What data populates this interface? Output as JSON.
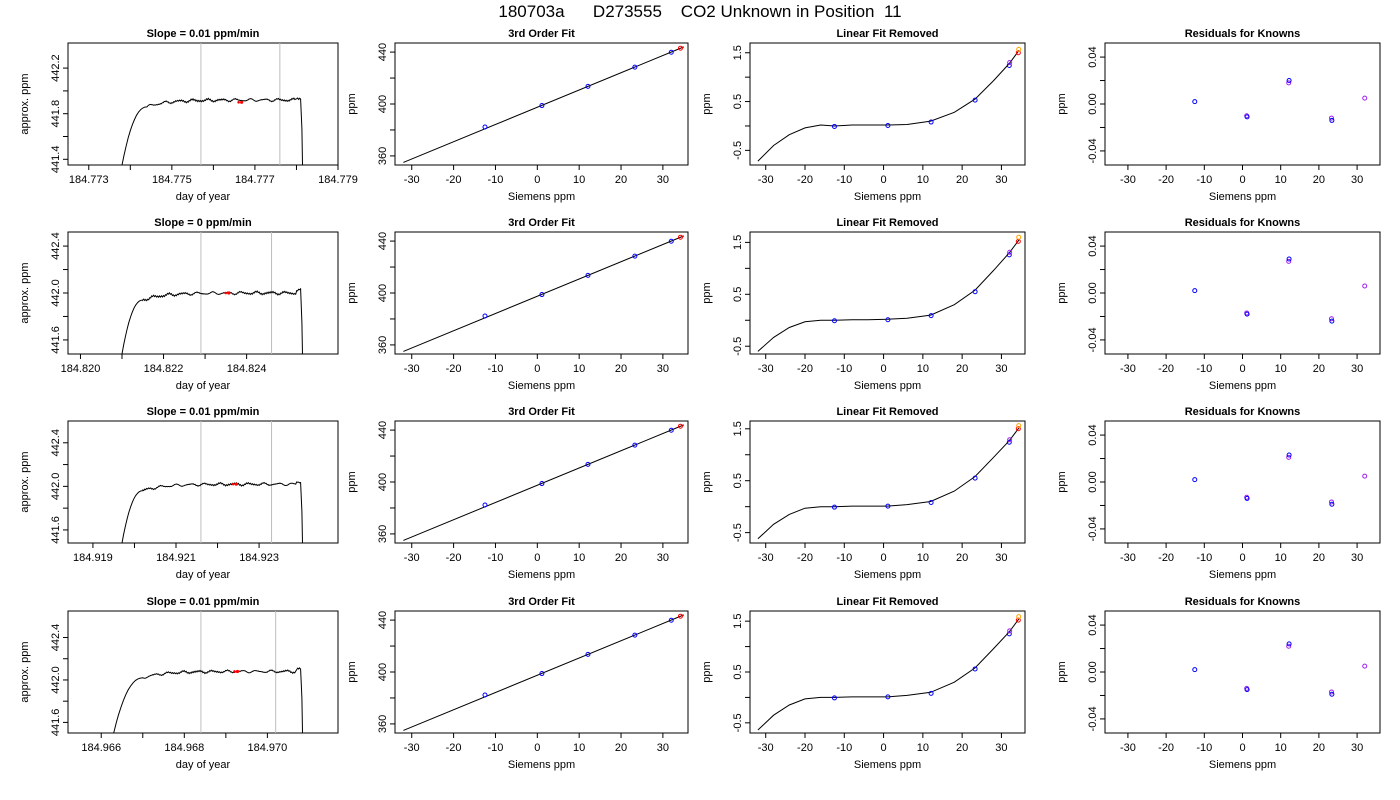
{
  "title": "180703a      D273555    CO2 Unknown in Position  11",
  "colors": {
    "trace": "#000000",
    "blue_points": "#0000ff",
    "purple_points": "#a020f0",
    "red_points": "#ff0000",
    "orange_points": "#ffa500",
    "divider_lines": "#bebebe"
  },
  "chart_data": [
    {
      "row": 1,
      "panels": [
        {
          "type": "line",
          "title": "Slope =  0.01  ppm/min",
          "xlabel": "day of year",
          "ylabel": "approx. ppm",
          "xlim": [
            184.7725,
            184.779
          ],
          "ylim": [
            441.35,
            442.42
          ],
          "xticks": [
            "184.773",
            "184.775",
            "184.777",
            "184.779"
          ],
          "yticks": [
            "441.4",
            "441.8",
            "442.2"
          ],
          "vlines": [
            184.7757,
            184.7776
          ],
          "trace_shape": {
            "rise_start": 184.7738,
            "rise_end": 184.7742,
            "plateau_start": 184.7744,
            "plateau_value": 441.92,
            "end": 184.7781
          },
          "marker": {
            "x": 184.77668,
            "y": 441.9
          }
        },
        {
          "type": "scatter",
          "title": "3rd Order Fit",
          "xlabel": "Siemens ppm",
          "ylabel": "ppm",
          "xlim": [
            -34,
            36
          ],
          "ylim": [
            353,
            447
          ],
          "xticks": [
            "-30",
            "-20",
            "-10",
            "0",
            "10",
            "20",
            "30"
          ],
          "yticks": [
            "360",
            "400",
            "440"
          ],
          "line": {
            "x": [
              -32,
              35
            ],
            "y": [
              355,
              444
            ]
          },
          "points_x": [
            -12.5,
            1.1,
            12.1,
            23.3,
            32.0,
            34.2
          ],
          "points_y": [
            382.3,
            398.8,
            413.6,
            428.4,
            439.9,
            443.0
          ]
        },
        {
          "type": "scatter",
          "title": "Linear Fit Removed",
          "xlabel": "Siemens ppm",
          "ylabel": "ppm",
          "xlim": [
            -34,
            36
          ],
          "ylim": [
            -0.8,
            1.7
          ],
          "xticks": [
            "-30",
            "-20",
            "-10",
            "0",
            "10",
            "20",
            "30"
          ],
          "yticks": [
            "-0.5",
            "0.5",
            "1.5"
          ],
          "curve_points": [
            [
              -32,
              -0.72
            ],
            [
              -28,
              -0.4
            ],
            [
              -24,
              -0.18
            ],
            [
              -20,
              -0.04
            ],
            [
              -16,
              0.02
            ],
            [
              -12.5,
              0.0
            ],
            [
              -8,
              0.02
            ],
            [
              -4,
              0.02
            ],
            [
              1,
              0.02
            ],
            [
              6,
              0.03
            ],
            [
              12,
              0.1
            ],
            [
              18,
              0.28
            ],
            [
              23.3,
              0.55
            ],
            [
              28,
              0.93
            ],
            [
              32,
              1.28
            ],
            [
              34.5,
              1.55
            ]
          ],
          "points_x": [
            -12.5,
            1.1,
            12.1,
            23.3,
            32.0,
            32.1,
            34.3,
            34.4
          ],
          "points_y": [
            -0.01,
            0.01,
            0.08,
            0.53,
            1.24,
            1.3,
            1.5,
            1.57
          ]
        },
        {
          "type": "scatter",
          "title": "Residuals for Knowns",
          "xlabel": "Siemens ppm",
          "ylabel": "ppm",
          "xlim": [
            -36,
            36
          ],
          "ylim": [
            -0.052,
            0.052
          ],
          "xticks": [
            "-30",
            "-20",
            "-10",
            "0",
            "10",
            "20",
            "30"
          ],
          "yticks": [
            "-0.04",
            "0.00",
            "0.04"
          ],
          "points_x": [
            -12.5,
            1.1,
            1.2,
            12.1,
            12.2,
            23.3,
            23.4,
            32.0
          ],
          "points_y": [
            0.002,
            -0.01,
            -0.011,
            0.018,
            0.02,
            -0.012,
            -0.014,
            0.005
          ]
        }
      ]
    },
    {
      "row": 2,
      "panels": [
        {
          "type": "line",
          "title": "Slope =  0  ppm/min",
          "xlabel": "day of year",
          "ylabel": "approx. ppm",
          "xlim": [
            184.8197,
            184.8262
          ],
          "ylim": [
            441.48,
            442.52
          ],
          "xticks": [
            "184.820",
            "184.822",
            "184.824"
          ],
          "yticks": [
            "441.6",
            "442.0",
            "442.4"
          ],
          "vlines": [
            184.8229,
            184.8246
          ],
          "trace_shape": {
            "rise_start": 184.821,
            "rise_end": 184.8213,
            "plateau_start": 184.8215,
            "plateau_value": 442.0,
            "end": 184.8253
          },
          "marker": {
            "x": 184.82357,
            "y": 442.0
          }
        },
        {
          "type": "scatter",
          "title": "3rd Order Fit",
          "xlabel": "Siemens ppm",
          "ylabel": "ppm",
          "xlim": [
            -34,
            36
          ],
          "ylim": [
            353,
            447
          ],
          "xticks": [
            "-30",
            "-20",
            "-10",
            "0",
            "10",
            "20",
            "30"
          ],
          "yticks": [
            "360",
            "400",
            "440"
          ],
          "line": {
            "x": [
              -32,
              35
            ],
            "y": [
              355,
              444
            ]
          },
          "points_x": [
            -12.5,
            1.1,
            12.1,
            23.3,
            32.0,
            34.2
          ],
          "points_y": [
            382.3,
            398.8,
            413.6,
            428.4,
            439.9,
            443.0
          ]
        },
        {
          "type": "scatter",
          "title": "Linear Fit Removed",
          "xlabel": "Siemens ppm",
          "ylabel": "ppm",
          "xlim": [
            -34,
            36
          ],
          "ylim": [
            -0.65,
            1.7
          ],
          "xticks": [
            "-30",
            "-20",
            "-10",
            "0",
            "10",
            "20",
            "30"
          ],
          "yticks": [
            "-0.5",
            "0.5",
            "1.5"
          ],
          "curve_points": [
            [
              -32,
              -0.6
            ],
            [
              -28,
              -0.33
            ],
            [
              -24,
              -0.14
            ],
            [
              -20,
              -0.03
            ],
            [
              -16,
              0.0
            ],
            [
              -12.5,
              0.0
            ],
            [
              -8,
              0.01
            ],
            [
              -4,
              0.01
            ],
            [
              1,
              0.02
            ],
            [
              6,
              0.04
            ],
            [
              12,
              0.1
            ],
            [
              18,
              0.3
            ],
            [
              23.3,
              0.58
            ],
            [
              28,
              0.96
            ],
            [
              32,
              1.3
            ],
            [
              34.5,
              1.55
            ]
          ],
          "points_x": [
            -12.5,
            1.1,
            12.1,
            23.3,
            32.0,
            32.1,
            34.3,
            34.4
          ],
          "points_y": [
            -0.01,
            0.01,
            0.09,
            0.55,
            1.26,
            1.31,
            1.52,
            1.6
          ]
        },
        {
          "type": "scatter",
          "title": "Residuals for Knowns",
          "xlabel": "Siemens ppm",
          "ylabel": "ppm",
          "xlim": [
            -36,
            36
          ],
          "ylim": [
            -0.052,
            0.052
          ],
          "xticks": [
            "-30",
            "-20",
            "-10",
            "0",
            "10",
            "20",
            "30"
          ],
          "yticks": [
            "-0.04",
            "0.00",
            "0.04"
          ],
          "points_x": [
            -12.5,
            1.1,
            1.2,
            12.1,
            12.2,
            23.3,
            23.4,
            32.0
          ],
          "points_y": [
            0.002,
            -0.017,
            -0.018,
            0.027,
            0.029,
            -0.022,
            -0.024,
            0.006
          ]
        }
      ]
    },
    {
      "row": 3,
      "panels": [
        {
          "type": "line",
          "title": "Slope =  0.01  ppm/min",
          "xlabel": "day of year",
          "ylabel": "approx. ppm",
          "xlim": [
            184.9184,
            184.9249
          ],
          "ylim": [
            441.48,
            442.6
          ],
          "xticks": [
            "184.919",
            "184.921",
            "184.923"
          ],
          "yticks": [
            "441.6",
            "442.0",
            "442.4"
          ],
          "vlines": [
            184.9216,
            184.9233
          ],
          "trace_shape": {
            "rise_start": 184.9197,
            "rise_end": 184.92,
            "plateau_start": 184.9202,
            "plateau_value": 442.02,
            "end": 184.924
          },
          "marker": {
            "x": 184.92245,
            "y": 442.02
          }
        },
        {
          "type": "scatter",
          "title": "3rd Order Fit",
          "xlabel": "Siemens ppm",
          "ylabel": "ppm",
          "xlim": [
            -34,
            36
          ],
          "ylim": [
            353,
            447
          ],
          "xticks": [
            "-30",
            "-20",
            "-10",
            "0",
            "10",
            "20",
            "30"
          ],
          "yticks": [
            "360",
            "400",
            "440"
          ],
          "line": {
            "x": [
              -32,
              35
            ],
            "y": [
              355,
              444
            ]
          },
          "points_x": [
            -12.5,
            1.1,
            12.1,
            23.3,
            32.0,
            34.2
          ],
          "points_y": [
            382.3,
            398.8,
            413.6,
            428.4,
            439.9,
            443.0
          ]
        },
        {
          "type": "scatter",
          "title": "Linear Fit Removed",
          "xlabel": "Siemens ppm",
          "ylabel": "ppm",
          "xlim": [
            -34,
            36
          ],
          "ylim": [
            -0.7,
            1.65
          ],
          "xticks": [
            "-30",
            "-20",
            "-10",
            "0",
            "10",
            "20",
            "30"
          ],
          "yticks": [
            "-0.5",
            "0.5",
            "1.5"
          ],
          "curve_points": [
            [
              -32,
              -0.62
            ],
            [
              -28,
              -0.34
            ],
            [
              -24,
              -0.15
            ],
            [
              -20,
              -0.03
            ],
            [
              -16,
              0.0
            ],
            [
              -12.5,
              0.0
            ],
            [
              -8,
              0.01
            ],
            [
              -4,
              0.01
            ],
            [
              1,
              0.01
            ],
            [
              6,
              0.04
            ],
            [
              12,
              0.1
            ],
            [
              18,
              0.3
            ],
            [
              23.3,
              0.58
            ],
            [
              28,
              0.95
            ],
            [
              32,
              1.27
            ],
            [
              34.5,
              1.52
            ]
          ],
          "points_x": [
            -12.5,
            1.1,
            12.1,
            23.3,
            32.0,
            32.1,
            34.3,
            34.4
          ],
          "points_y": [
            -0.01,
            0.01,
            0.08,
            0.55,
            1.24,
            1.29,
            1.5,
            1.56
          ]
        },
        {
          "type": "scatter",
          "title": "Residuals for Knowns",
          "xlabel": "Siemens ppm",
          "ylabel": "ppm",
          "xlim": [
            -36,
            36
          ],
          "ylim": [
            -0.052,
            0.052
          ],
          "xticks": [
            "-30",
            "-20",
            "-10",
            "0",
            "10",
            "20",
            "30"
          ],
          "yticks": [
            "-0.04",
            "0.00",
            "0.04"
          ],
          "points_x": [
            -12.5,
            1.1,
            1.2,
            12.1,
            12.2,
            23.3,
            23.4,
            32.0
          ],
          "points_y": [
            0.002,
            -0.013,
            -0.014,
            0.021,
            0.023,
            -0.017,
            -0.019,
            0.005
          ]
        }
      ]
    },
    {
      "row": 4,
      "panels": [
        {
          "type": "line",
          "title": "Slope =  0.01  ppm/min",
          "xlabel": "day of year",
          "ylabel": "approx. ppm",
          "xlim": [
            184.9652,
            184.9717
          ],
          "ylim": [
            441.5,
            442.65
          ],
          "xticks": [
            "184.966",
            "184.968",
            "184.970"
          ],
          "yticks": [
            "441.6",
            "442.0",
            "442.4"
          ],
          "vlines": [
            184.9684,
            184.9702
          ],
          "trace_shape": {
            "rise_start": 184.9663,
            "rise_end": 184.9667,
            "plateau_start": 184.967,
            "plateau_value": 442.08,
            "end": 184.9708
          },
          "marker": {
            "x": 184.96928,
            "y": 442.08
          }
        },
        {
          "type": "scatter",
          "title": "3rd Order Fit",
          "xlabel": "Siemens ppm",
          "ylabel": "ppm",
          "xlim": [
            -34,
            36
          ],
          "ylim": [
            353,
            447
          ],
          "xticks": [
            "-30",
            "-20",
            "-10",
            "0",
            "10",
            "20",
            "30"
          ],
          "yticks": [
            "360",
            "400",
            "440"
          ],
          "line": {
            "x": [
              -32,
              35
            ],
            "y": [
              355,
              444
            ]
          },
          "points_x": [
            -12.5,
            1.1,
            12.1,
            23.3,
            32.0,
            34.2
          ],
          "points_y": [
            382.3,
            398.8,
            413.6,
            428.4,
            439.9,
            443.0
          ]
        },
        {
          "type": "scatter",
          "title": "Linear Fit Removed",
          "xlabel": "Siemens ppm",
          "ylabel": "ppm",
          "xlim": [
            -34,
            36
          ],
          "ylim": [
            -0.7,
            1.7
          ],
          "xticks": [
            "-30",
            "-20",
            "-10",
            "0",
            "10",
            "20",
            "30"
          ],
          "yticks": [
            "-0.5",
            "0.5",
            "1.5"
          ],
          "curve_points": [
            [
              -32,
              -0.64
            ],
            [
              -28,
              -0.35
            ],
            [
              -24,
              -0.15
            ],
            [
              -20,
              -0.03
            ],
            [
              -16,
              0.0
            ],
            [
              -12.5,
              0.0
            ],
            [
              -8,
              0.01
            ],
            [
              -4,
              0.01
            ],
            [
              1,
              0.01
            ],
            [
              6,
              0.04
            ],
            [
              12,
              0.1
            ],
            [
              18,
              0.3
            ],
            [
              23.3,
              0.58
            ],
            [
              28,
              0.96
            ],
            [
              32,
              1.29
            ],
            [
              34.5,
              1.55
            ]
          ],
          "points_x": [
            -12.5,
            1.1,
            12.1,
            23.3,
            32.0,
            32.1,
            34.3,
            34.4
          ],
          "points_y": [
            -0.01,
            0.01,
            0.08,
            0.56,
            1.25,
            1.31,
            1.52,
            1.59
          ]
        },
        {
          "type": "scatter",
          "title": "Residuals for Knowns",
          "xlabel": "Siemens ppm",
          "ylabel": "ppm",
          "xlim": [
            -36,
            36
          ],
          "ylim": [
            -0.052,
            0.052
          ],
          "xticks": [
            "-30",
            "-20",
            "-10",
            "0",
            "10",
            "20",
            "30"
          ],
          "yticks": [
            "-0.04",
            "0.00",
            "0.04"
          ],
          "points_x": [
            -12.5,
            1.1,
            1.2,
            12.1,
            12.2,
            23.3,
            23.4,
            32.0
          ],
          "points_y": [
            0.002,
            -0.014,
            -0.015,
            0.022,
            0.024,
            -0.017,
            -0.019,
            0.005
          ]
        }
      ]
    }
  ]
}
